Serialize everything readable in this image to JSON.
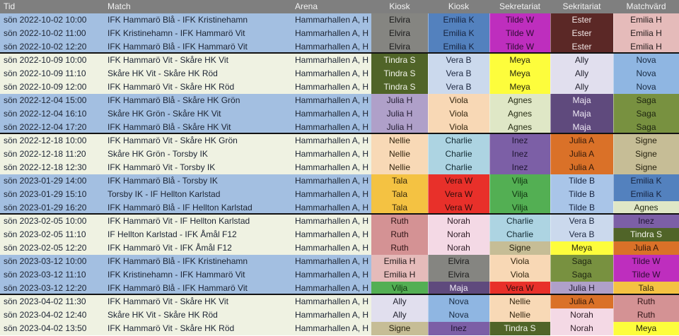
{
  "header": {
    "columns": [
      {
        "label": "Tid"
      },
      {
        "label": "Match"
      },
      {
        "label": "Arena"
      },
      {
        "label": "Kiosk"
      },
      {
        "label": "Kiosk"
      },
      {
        "label": "Sekretariat"
      },
      {
        "label": "Sekritariat"
      },
      {
        "label": "Matchvärd"
      }
    ]
  },
  "palette": {
    "Elvira": {
      "bg": "#858581",
      "fg": "#1a1a1a"
    },
    "Emilia K": {
      "bg": "#5381be",
      "fg": "#16233f"
    },
    "Tilde W": {
      "bg": "#be2ebe",
      "fg": "#2e0a33"
    },
    "Ester": {
      "bg": "#5b2826",
      "fg": "#f3e9e8"
    },
    "Emilia H": {
      "bg": "#e5bbba",
      "fg": "#231a1a"
    },
    "Tindra S": {
      "bg": "#506428",
      "fg": "#f2f4ea"
    },
    "Vera B": {
      "bg": "#cbd9ed",
      "fg": "#1c2740"
    },
    "Meya": {
      "bg": "#fdfd3c",
      "fg": "#26260e"
    },
    "Ally": {
      "bg": "#e1dfee",
      "fg": "#232330"
    },
    "Nova": {
      "bg": "#8fb6e2",
      "fg": "#182a42"
    },
    "Julia H": {
      "bg": "#afa0c9",
      "fg": "#241d33"
    },
    "Viola": {
      "bg": "#f8d8b5",
      "fg": "#33250f"
    },
    "Agnes": {
      "bg": "#dfe7c6",
      "fg": "#252b13"
    },
    "Maja": {
      "bg": "#5f4a7d",
      "fg": "#efeaf5"
    },
    "Saga": {
      "bg": "#789140",
      "fg": "#1d2410"
    },
    "Nellie": {
      "bg": "#f8d9b6",
      "fg": "#33250f"
    },
    "Charlie": {
      "bg": "#add4e2",
      "fg": "#132b33"
    },
    "Inez": {
      "bg": "#7c5fa6",
      "fg": "#1d1430"
    },
    "Julia A": {
      "bg": "#da7128",
      "fg": "#33190a"
    },
    "Signe": {
      "bg": "#c6bd96",
      "fg": "#26220f"
    },
    "Tala": {
      "bg": "#f4c242",
      "fg": "#33270c"
    },
    "Vera W": {
      "bg": "#e8302a",
      "fg": "#2e0c0a"
    },
    "Vilja": {
      "bg": "#53af53",
      "fg": "#103210"
    },
    "Tilde B": {
      "bg": "#a9c5e8",
      "fg": "#16233f"
    },
    "Ruth": {
      "bg": "#d49294",
      "fg": "#301416"
    },
    "Norah": {
      "bg": "#f4d9e5",
      "fg": "#2e1c26"
    }
  },
  "groups": [
    {
      "tone": "blue",
      "rows": [
        {
          "tid": "sön 2022-10-02 10:00",
          "match": "IFK Hammarö Blå - IFK Kristinehamn",
          "arena": "Hammarhallen A, H",
          "staff": [
            "Elvira",
            "Emilia K",
            "Tilde W",
            "Ester",
            "Emilia H"
          ]
        },
        {
          "tid": "sön 2022-10-02 11:00",
          "match": "IFK Kristinehamn - IFK Hammarö Vit",
          "arena": "Hammarhallen A, H",
          "staff": [
            "Elvira",
            "Emilia K",
            "Tilde W",
            "Ester",
            "Emilia H"
          ]
        },
        {
          "tid": "sön 2022-10-02 12:20",
          "match": "IFK Hammarö Blå - IFK Hammarö Vit",
          "arena": "Hammarhallen A, H",
          "staff": [
            "Elvira",
            "Emilia K",
            "Tilde W",
            "Ester",
            "Emilia H"
          ]
        }
      ]
    },
    {
      "tone": "light",
      "rows": [
        {
          "tid": "sön 2022-10-09 10:00",
          "match": "IFK Hammarö Vit - Skåre HK Vit",
          "arena": "Hammarhallen A, H",
          "staff": [
            "Tindra S",
            "Vera B",
            "Meya",
            "Ally",
            "Nova"
          ]
        },
        {
          "tid": "sön 2022-10-09 11:10",
          "match": "Skåre HK Vit - Skåre HK Röd",
          "arena": "Hammarhallen A, H",
          "staff": [
            "Tindra S",
            "Vera B",
            "Meya",
            "Ally",
            "Nova"
          ]
        },
        {
          "tid": "sön 2022-10-09 12:00",
          "match": "IFK Hammarö Vit - Skåre HK Röd",
          "arena": "Hammarhallen A, H",
          "staff": [
            "Tindra S",
            "Vera B",
            "Meya",
            "Ally",
            "Nova"
          ]
        }
      ]
    },
    {
      "tone": "blue",
      "rows": [
        {
          "tid": "sön 2022-12-04 15:00",
          "match": "IFK Hammarö Blå - Skåre HK Grön",
          "arena": "Hammarhallen A, H",
          "staff": [
            "Julia H",
            "Viola",
            "Agnes",
            "Maja",
            "Saga"
          ]
        },
        {
          "tid": "sön 2022-12-04 16:10",
          "match": "Skåre HK Grön - Skåre HK Vit",
          "arena": "Hammarhallen A, H",
          "staff": [
            "Julia H",
            "Viola",
            "Agnes",
            "Maja",
            "Saga"
          ]
        },
        {
          "tid": "sön 2022-12-04 17:20",
          "match": "IFK Hammarö Blå - Skåre HK Vit",
          "arena": "Hammarhallen A, H",
          "staff": [
            "Julia H",
            "Viola",
            "Agnes",
            "Maja",
            "Saga"
          ]
        }
      ]
    },
    {
      "tone": "light",
      "rows": [
        {
          "tid": "sön 2022-12-18 10:00",
          "match": "IFK Hammarö Vit - Skåre HK Grön",
          "arena": "Hammarhallen A, H",
          "staff": [
            "Nellie",
            "Charlie",
            "Inez",
            "Julia A",
            "Signe"
          ]
        },
        {
          "tid": "sön 2022-12-18 11:20",
          "match": "Skåre HK Grön - Torsby IK",
          "arena": "Hammarhallen A, H",
          "staff": [
            "Nellie",
            "Charlie",
            "Inez",
            "Julia A",
            "Signe"
          ]
        },
        {
          "tid": "sön 2022-12-18 12:30",
          "match": "IFK Hammarö Vit - Torsby IK",
          "arena": "Hammarhallen A, H",
          "staff": [
            "Nellie",
            "Charlie",
            "Inez",
            "Julia A",
            "Signe"
          ]
        }
      ]
    },
    {
      "tone": "blue",
      "rows": [
        {
          "tid": "sön 2023-01-29 14:00",
          "match": "IFK Hammarö Blå - Torsby IK",
          "arena": "Hammarhallen A, H",
          "staff": [
            "Tala",
            "Vera W",
            "Vilja",
            "Tilde B",
            "Emilia K"
          ]
        },
        {
          "tid": "sön 2023-01-29 15:10",
          "match": "Torsby IK - IF Hellton Karlstad",
          "arena": "Hammarhallen A, H",
          "staff": [
            "Tala",
            "Vera W",
            "Vilja",
            "Tilde B",
            "Emilia K"
          ]
        },
        {
          "tid": "sön 2023-01-29 16:20",
          "match": "IFK Hammarö Blå - IF Hellton Karlstad",
          "arena": "Hammarhallen A, H",
          "staff": [
            "Tala",
            "Vera W",
            "Vilja",
            "Tilde B",
            "Agnes"
          ]
        }
      ]
    },
    {
      "tone": "light",
      "rows": [
        {
          "tid": "sön 2023-02-05 10:00",
          "match": "IFK Hammarö Vit - IF Hellton Karlstad",
          "arena": "Hammarhallen A, H",
          "staff": [
            "Ruth",
            "Norah",
            "Charlie",
            "Vera B",
            "Inez"
          ]
        },
        {
          "tid": "sön 2023-02-05 11:10",
          "match": "IF Hellton Karlstad - IFK Åmål F12",
          "arena": "Hammarhallen A, H",
          "staff": [
            "Ruth",
            "Norah",
            "Charlie",
            "Vera B",
            "Tindra S"
          ]
        },
        {
          "tid": "sön 2023-02-05 12:20",
          "match": "IFK Hammarö Vit - IFK Åmål F12",
          "arena": "Hammarhallen A, H",
          "staff": [
            "Ruth",
            "Norah",
            "Signe",
            "Meya",
            "Julia A"
          ]
        }
      ]
    },
    {
      "tone": "blue",
      "rows": [
        {
          "tid": "sön 2023-03-12 10:00",
          "match": "IFK Hammarö Blå - IFK Kristinehamn",
          "arena": "Hammarhallen A, H",
          "staff": [
            "Emilia H",
            "Elvira",
            "Viola",
            "Saga",
            "Tilde W"
          ]
        },
        {
          "tid": "sön 2023-03-12 11:10",
          "match": "IFK Kristinehamn - IFK Hammarö Vit",
          "arena": "Hammarhallen A, H",
          "staff": [
            "Emilia H",
            "Elvira",
            "Viola",
            "Saga",
            "Tilde W"
          ]
        },
        {
          "tid": "sön 2023-03-12 12:20",
          "match": "IFK Hammarö Blå - IFK Hammarö Vit",
          "arena": "Hammarhallen A, H",
          "staff": [
            "Vilja",
            "Maja",
            "Vera W",
            "Julia H",
            "Tala"
          ]
        }
      ]
    },
    {
      "tone": "light",
      "rows": [
        {
          "tid": "sön 2023-04-02 11:30",
          "match": "IFK Hammarö Vit - Skåre HK Vit",
          "arena": "Hammarhallen A, H",
          "staff": [
            "Ally",
            "Nova",
            "Nellie",
            "Julia A",
            "Ruth"
          ]
        },
        {
          "tid": "sön 2023-04-02 12:40",
          "match": "Skåre HK Vit - Skåre HK Röd",
          "arena": "Hammarhallen A, H",
          "staff": [
            "Ally",
            "Nova",
            "Nellie",
            "Norah",
            "Ruth"
          ]
        },
        {
          "tid": "sön 2023-04-02 13:50",
          "match": "IFK Hammarö Vit - Skåre HK Röd",
          "arena": "Hammarhallen A, H",
          "staff": [
            "Signe",
            "Inez",
            "Tindra S",
            "Norah",
            "Meya"
          ]
        }
      ]
    }
  ]
}
